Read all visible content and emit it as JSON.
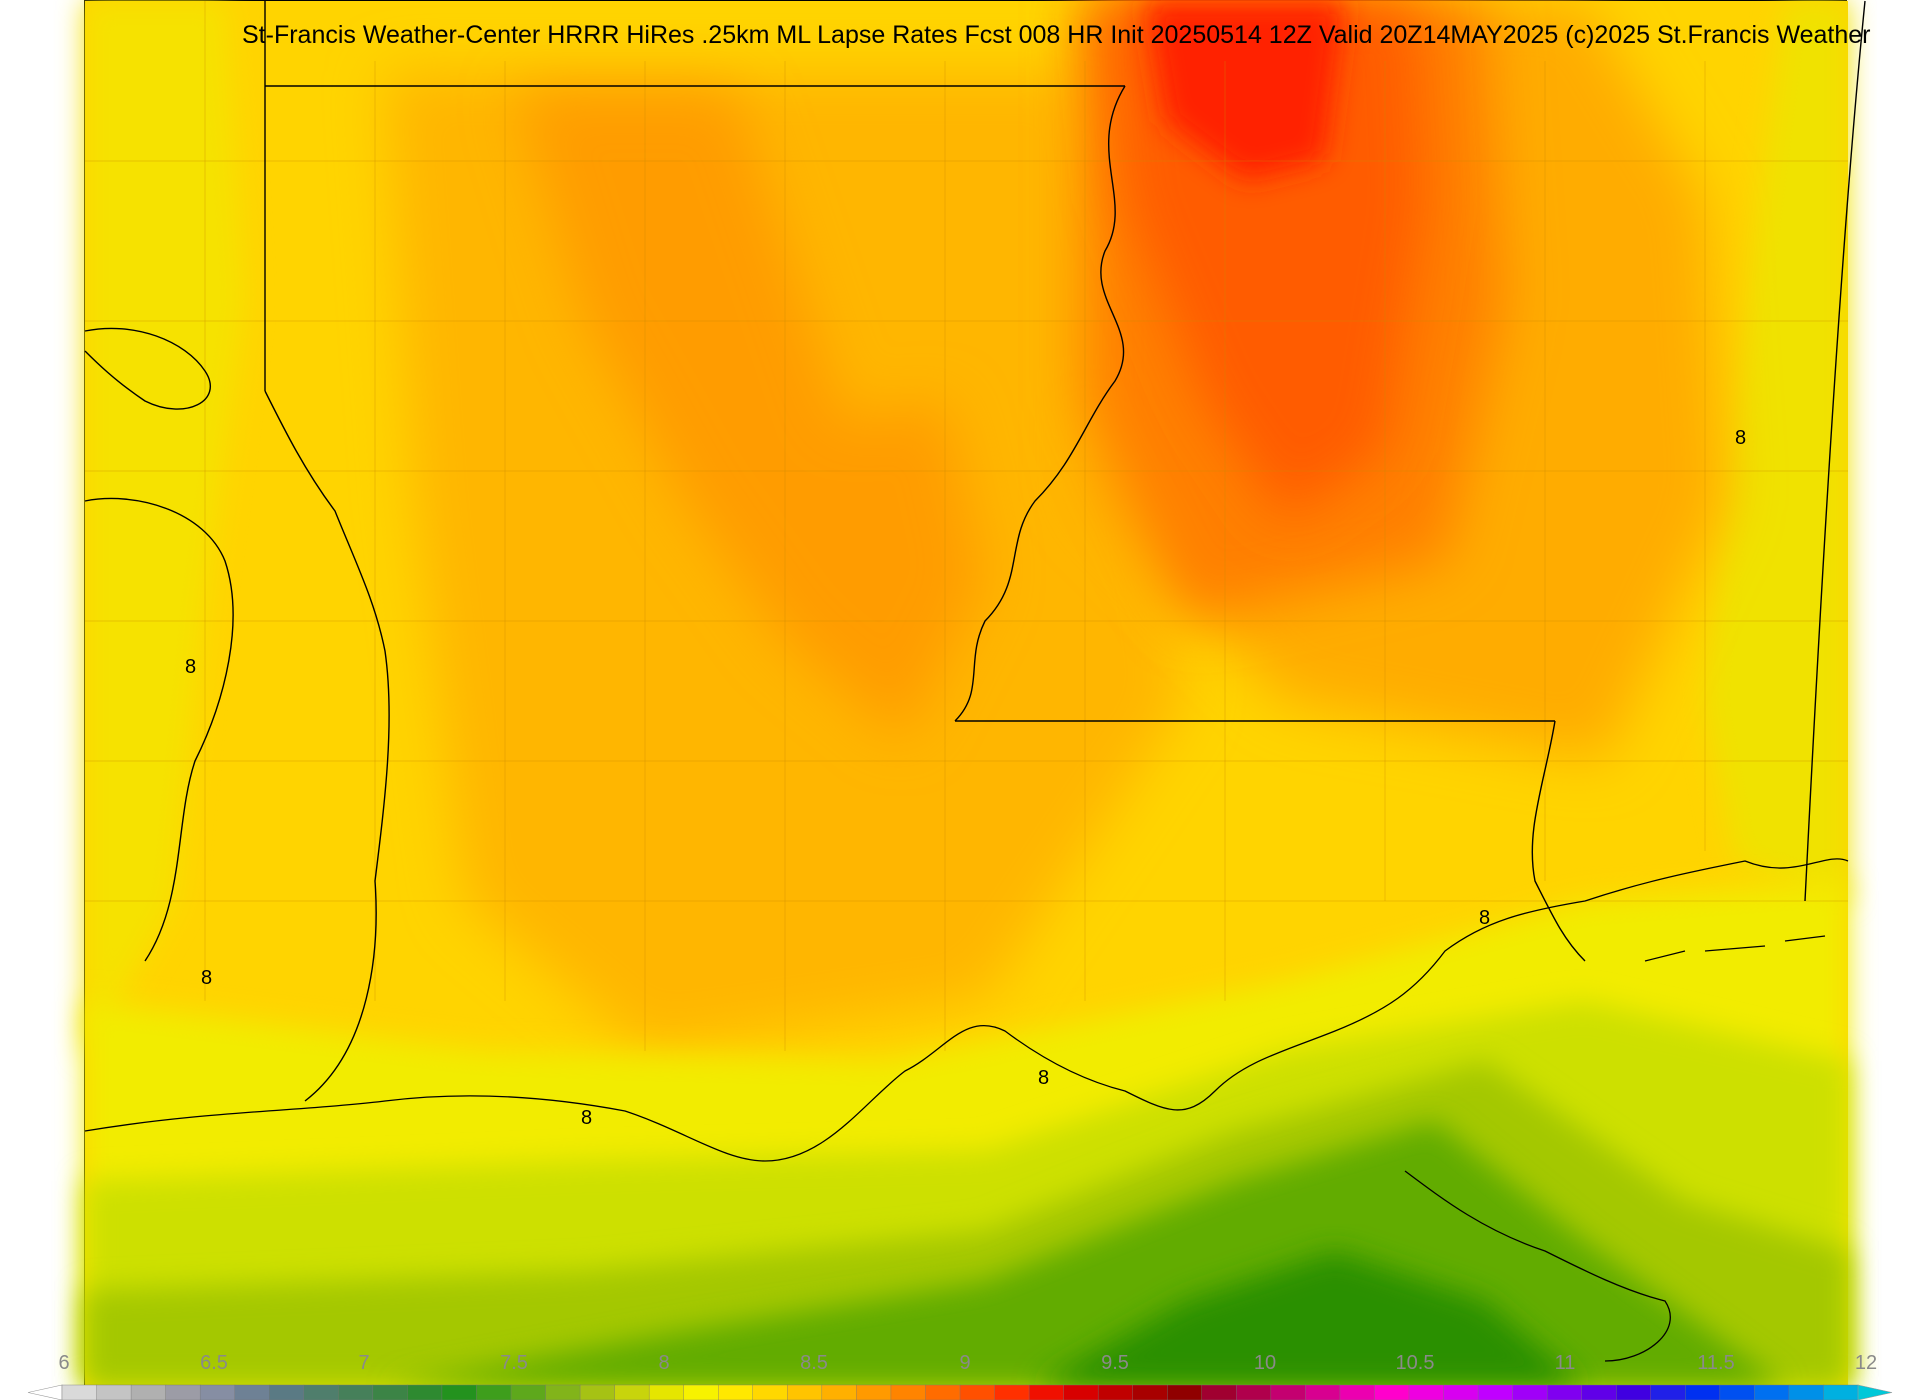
{
  "title": "St-Francis Weather-Center HRRR HiRes .25km ML Lapse Rates  Fcst 008 HR Init 20250514 12Z  Valid 20Z14MAY2025    (c)2025 St.Francis Weather",
  "contour_labels": [
    "8",
    "8",
    "8",
    "8",
    "8",
    "8"
  ],
  "colorbar": {
    "tick_labels": [
      "6",
      "6.5",
      "7",
      "7.5",
      "8",
      "8.5",
      "9",
      "9.5",
      "10",
      "10.5",
      "11",
      "11.5",
      "12"
    ],
    "colors": [
      "#ffffff",
      "#d9d9d9",
      "#c4c4c4",
      "#b0b0b0",
      "#9c9ca6",
      "#868ea3",
      "#6e8195",
      "#5a7a84",
      "#4f7e6c",
      "#46805a",
      "#3c8446",
      "#2e8a30",
      "#23921e",
      "#3e9e1c",
      "#5ea81c",
      "#82b41a",
      "#a6c214",
      "#c8d40c",
      "#e6e600",
      "#f7f200",
      "#ffe800",
      "#ffd800",
      "#ffc400",
      "#ffb000",
      "#ff9a00",
      "#ff8400",
      "#ff6c00",
      "#ff5000",
      "#ff3000",
      "#f01000",
      "#d80000",
      "#c00000",
      "#a80000",
      "#900000",
      "#a00030",
      "#b0004c",
      "#c40070",
      "#d80090",
      "#ec00b0",
      "#ff00cc",
      "#ee00e0",
      "#d800f0",
      "#c000ff",
      "#a000f8",
      "#8000f0",
      "#6000e8",
      "#4000e0",
      "#2020e8",
      "#0030f0",
      "#0050f0",
      "#0070f0",
      "#0090e8",
      "#00b0e0",
      "#00c8d8"
    ]
  },
  "field_colors": {
    "deep_green": "#1f8c00",
    "green": "#5aa800",
    "light_green": "#9ac800",
    "yellow_green": "#d0e000",
    "yellow": "#f4ec00",
    "gold": "#ffd400",
    "amber": "#ffb800",
    "orange": "#ff9000",
    "dark_orange": "#ff6a00",
    "red": "#ff2a00"
  }
}
